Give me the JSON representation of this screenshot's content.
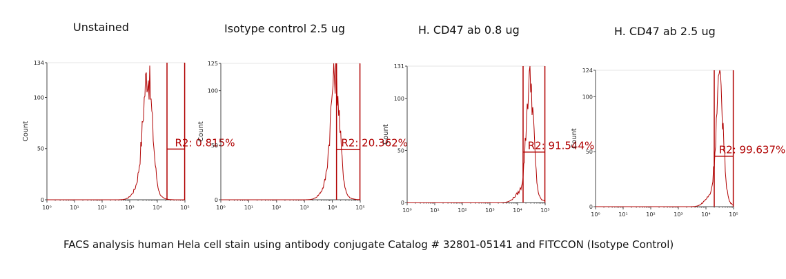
{
  "caption": "FACS analysis human Hela cell stain using antibody conjugate Catalog # 32801-05141 and FITCCON (Isotype Control)",
  "colors": {
    "trace": "#b00000",
    "axis": "#444444",
    "text": "#111111"
  },
  "chart_data": [
    {
      "type": "histogram",
      "title": "Unstained",
      "ylabel": "Count",
      "y_max": 134,
      "yticks": [
        0,
        50,
        100,
        134
      ],
      "x_scale": "log",
      "xlim": [
        1,
        100000
      ],
      "xtick_labels": [
        "10⁰",
        "10¹",
        "10²",
        "10³",
        "10⁴",
        "10⁵"
      ],
      "peak_log": 3.65,
      "peak_width": 0.17,
      "peak_height": 128,
      "gate_log": [
        4.35,
        4.99
      ],
      "region_label": "R2: 0.815%"
    },
    {
      "type": "histogram",
      "title": "Isotype control 2.5 ug",
      "ylabel": "Count",
      "y_max": 125,
      "yticks": [
        0,
        50,
        100,
        125
      ],
      "x_scale": "log",
      "xlim": [
        1,
        100000
      ],
      "xtick_labels": [
        "10⁰",
        "10¹",
        "10²",
        "10³",
        "10⁴",
        "10⁵"
      ],
      "peak_log": 4.1,
      "peak_width": 0.16,
      "peak_height": 122,
      "gate_log": [
        4.15,
        4.99
      ],
      "region_label": "R2: 20.362%"
    },
    {
      "type": "histogram",
      "title": "H. CD47 ab 0.8 ug",
      "ylabel": "Count",
      "y_max": 131,
      "yticks": [
        0,
        50,
        100,
        131
      ],
      "x_scale": "log",
      "xlim": [
        1,
        100000
      ],
      "xtick_labels": [
        "10⁰",
        "10¹",
        "10²",
        "10³",
        "10⁴",
        "10⁵"
      ],
      "peak_log": 4.45,
      "peak_width": 0.13,
      "peak_height": 125,
      "gate_log": [
        4.2,
        4.99
      ],
      "region_label": "R2: 91.544%"
    },
    {
      "type": "histogram",
      "title": "H. CD47 ab 2.5 ug",
      "ylabel": "Count",
      "y_max": 124,
      "yticks": [
        0,
        50,
        100,
        124
      ],
      "x_scale": "log",
      "xlim": [
        1,
        100000
      ],
      "xtick_labels": [
        "10⁰",
        "10¹",
        "10²",
        "10³",
        "10⁴",
        "10⁵"
      ],
      "peak_log": 4.5,
      "peak_width": 0.13,
      "peak_height": 118,
      "gate_log": [
        4.3,
        4.99
      ],
      "region_label": "R2: 99.637%"
    }
  ]
}
